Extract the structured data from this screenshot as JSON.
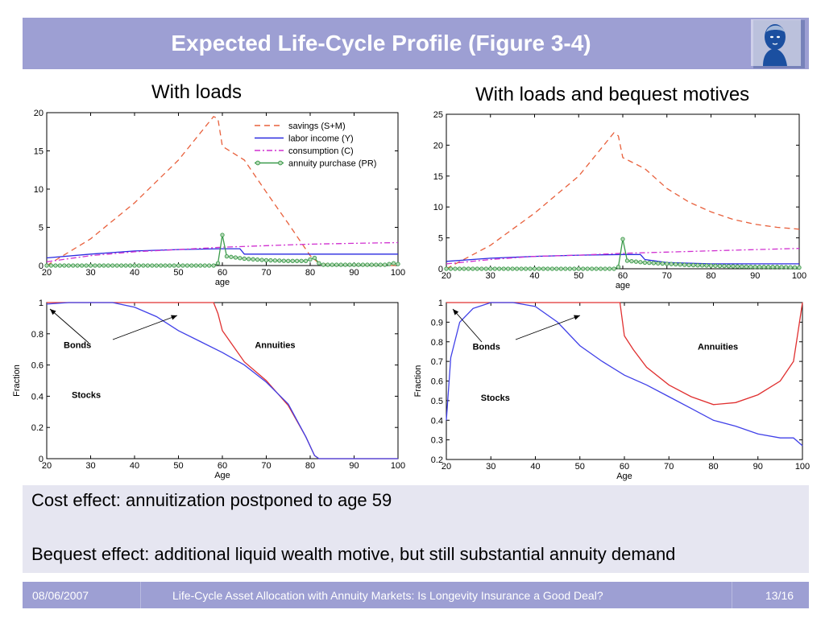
{
  "slide": {
    "title": "Expected Life-Cycle Profile (Figure 3-4)",
    "logo_icon": "goethe-portrait-logo",
    "subhead_left": "With loads",
    "subhead_right": "With loads and bequest motives",
    "note_1": "Cost effect: annuitization postponed to age 59",
    "note_2": "Bequest effect: additional liquid wealth motive, but still substantial annuity demand",
    "footer_date": "08/06/2007",
    "footer_title": "Life-Cycle Asset Allocation with Annuity Markets: Is Longevity Insurance a Good Deal?",
    "footer_page": "13/16",
    "colors": {
      "accent": "#9d9fd3",
      "notes_bg": "#e6e6f1",
      "red": "#e8603c",
      "blue": "#2a2ae0",
      "magenta": "#d030d0",
      "green": "#3a9a4a"
    }
  },
  "chart_data": [
    {
      "type": "line",
      "panel": "top-left",
      "xlabel": "age",
      "ylabel": "",
      "xlim": [
        20,
        100
      ],
      "ylim": [
        0,
        20
      ],
      "xticks": [
        20,
        30,
        40,
        50,
        60,
        70,
        80,
        90,
        100
      ],
      "yticks": [
        0,
        5,
        10,
        15,
        20
      ],
      "legend": "top-right",
      "series": [
        {
          "name": "savings (S+M)",
          "style": "dashed",
          "color": "#e8603c",
          "points": [
            [
              20,
              0
            ],
            [
              30,
              3.5
            ],
            [
              40,
              8.2
            ],
            [
              50,
              13.8
            ],
            [
              58,
              19.5
            ],
            [
              59,
              19.2
            ],
            [
              60,
              15.6
            ],
            [
              65,
              13.8
            ],
            [
              70,
              9.6
            ],
            [
              75,
              5.5
            ],
            [
              80,
              1.3
            ],
            [
              82,
              0.3
            ],
            [
              85,
              0.1
            ],
            [
              100,
              0
            ]
          ]
        },
        {
          "name": "labor income (Y)",
          "style": "solid",
          "color": "#2a2ae0",
          "points": [
            [
              20,
              1.0
            ],
            [
              30,
              1.5
            ],
            [
              40,
              1.9
            ],
            [
              50,
              2.1
            ],
            [
              60,
              2.2
            ],
            [
              64,
              2.2
            ],
            [
              65,
              1.5
            ],
            [
              100,
              1.5
            ]
          ]
        },
        {
          "name": "consumption (C)",
          "style": "dashdot",
          "color": "#d030d0",
          "points": [
            [
              20,
              0.5
            ],
            [
              30,
              1.3
            ],
            [
              40,
              1.8
            ],
            [
              50,
              2.1
            ],
            [
              60,
              2.4
            ],
            [
              70,
              2.6
            ],
            [
              80,
              2.8
            ],
            [
              90,
              2.9
            ],
            [
              100,
              3.0
            ]
          ]
        },
        {
          "name": "annuity purchase (PR)",
          "style": "marker",
          "color": "#3a9a4a",
          "points": [
            [
              20,
              0
            ],
            [
              58,
              0
            ],
            [
              59,
              0.3
            ],
            [
              60,
              4.0
            ],
            [
              61,
              1.2
            ],
            [
              65,
              0.9
            ],
            [
              70,
              0.7
            ],
            [
              75,
              0.6
            ],
            [
              79,
              0.6
            ],
            [
              80,
              0.8
            ],
            [
              81,
              1.0
            ],
            [
              82,
              0.3
            ],
            [
              83,
              0.1
            ],
            [
              97,
              0.1
            ],
            [
              99,
              0.3
            ],
            [
              100,
              0.2
            ]
          ]
        }
      ]
    },
    {
      "type": "line",
      "panel": "top-right",
      "xlabel": "age",
      "ylabel": "",
      "xlim": [
        20,
        100
      ],
      "ylim": [
        0,
        25
      ],
      "xticks": [
        20,
        30,
        40,
        50,
        60,
        70,
        80,
        90,
        100
      ],
      "yticks": [
        0,
        5,
        10,
        15,
        20,
        25
      ],
      "series": [
        {
          "name": "savings (S+M)",
          "style": "dashed",
          "color": "#e8603c",
          "points": [
            [
              20,
              0
            ],
            [
              30,
              3.8
            ],
            [
              40,
              9.0
            ],
            [
              50,
              15.0
            ],
            [
              58,
              22.0
            ],
            [
              59,
              21.5
            ],
            [
              60,
              18.0
            ],
            [
              65,
              16.2
            ],
            [
              70,
              13.0
            ],
            [
              75,
              10.8
            ],
            [
              80,
              9.2
            ],
            [
              85,
              8.0
            ],
            [
              90,
              7.2
            ],
            [
              95,
              6.7
            ],
            [
              100,
              6.4
            ]
          ]
        },
        {
          "name": "labor income (Y)",
          "style": "solid",
          "color": "#2a2ae0",
          "points": [
            [
              20,
              1.2
            ],
            [
              30,
              1.7
            ],
            [
              40,
              2.0
            ],
            [
              50,
              2.2
            ],
            [
              60,
              2.3
            ],
            [
              64,
              2.3
            ],
            [
              65,
              1.5
            ],
            [
              70,
              1.0
            ],
            [
              80,
              0.8
            ],
            [
              100,
              0.8
            ]
          ]
        },
        {
          "name": "consumption (C)",
          "style": "dashdot",
          "color": "#d030d0",
          "points": [
            [
              20,
              0.8
            ],
            [
              30,
              1.5
            ],
            [
              40,
              2.0
            ],
            [
              50,
              2.2
            ],
            [
              60,
              2.5
            ],
            [
              70,
              2.7
            ],
            [
              80,
              2.9
            ],
            [
              90,
              3.1
            ],
            [
              100,
              3.3
            ]
          ]
        },
        {
          "name": "annuity purchase (PR)",
          "style": "marker",
          "color": "#3a9a4a",
          "points": [
            [
              20,
              0
            ],
            [
              58,
              0
            ],
            [
              59,
              0.3
            ],
            [
              60,
              4.8
            ],
            [
              61,
              1.3
            ],
            [
              65,
              1.0
            ],
            [
              70,
              0.8
            ],
            [
              75,
              0.6
            ],
            [
              80,
              0.5
            ],
            [
              85,
              0.4
            ],
            [
              90,
              0.3
            ],
            [
              95,
              0.3
            ],
            [
              100,
              0.2
            ]
          ]
        }
      ]
    },
    {
      "type": "line",
      "panel": "bottom-left",
      "xlabel": "Age",
      "ylabel": "Fraction",
      "xlim": [
        20,
        100
      ],
      "ylim": [
        0,
        1
      ],
      "xticks": [
        20,
        30,
        40,
        50,
        60,
        70,
        80,
        90,
        100
      ],
      "yticks": [
        0,
        0.2,
        0.4,
        0.6,
        0.8,
        1
      ],
      "annotations": [
        {
          "text": "Bonds",
          "x": 27,
          "y": 0.71
        },
        {
          "text": "Annuities",
          "x": 72,
          "y": 0.71
        },
        {
          "text": "Stocks",
          "x": 29,
          "y": 0.39
        }
      ],
      "series": [
        {
          "name": "",
          "style": "solid",
          "color": "#e03030",
          "points": [
            [
              20,
              1
            ],
            [
              58,
              1
            ],
            [
              59,
              0.93
            ],
            [
              60,
              0.82
            ],
            [
              62,
              0.74
            ],
            [
              65,
              0.62
            ],
            [
              70,
              0.5
            ],
            [
              75,
              0.34
            ],
            [
              79,
              0.14
            ],
            [
              81,
              0.02
            ],
            [
              82,
              0
            ],
            [
              100,
              0
            ]
          ]
        },
        {
          "name": "",
          "style": "solid",
          "color": "#4040e8",
          "points": [
            [
              20,
              0.99
            ],
            [
              25,
              1
            ],
            [
              35,
              1
            ],
            [
              40,
              0.97
            ],
            [
              45,
              0.91
            ],
            [
              50,
              0.82
            ],
            [
              55,
              0.75
            ],
            [
              60,
              0.68
            ],
            [
              65,
              0.6
            ],
            [
              70,
              0.49
            ],
            [
              75,
              0.35
            ],
            [
              79,
              0.14
            ],
            [
              81,
              0.02
            ],
            [
              82,
              0
            ],
            [
              100,
              0
            ]
          ]
        }
      ]
    },
    {
      "type": "line",
      "panel": "bottom-right",
      "xlabel": "Age",
      "ylabel": "Fraction",
      "xlim": [
        20,
        100
      ],
      "ylim": [
        0.2,
        1
      ],
      "xticks": [
        20,
        30,
        40,
        50,
        60,
        70,
        80,
        90,
        100
      ],
      "yticks": [
        0.2,
        0.3,
        0.4,
        0.5,
        0.6,
        0.7,
        0.8,
        0.9,
        1
      ],
      "annotations": [
        {
          "text": "Bonds",
          "x": 29,
          "y": 0.76
        },
        {
          "text": "Annuities",
          "x": 81,
          "y": 0.76
        },
        {
          "text": "Stocks",
          "x": 31,
          "y": 0.5
        }
      ],
      "series": [
        {
          "name": "",
          "style": "solid",
          "color": "#e03030",
          "points": [
            [
              20,
              1
            ],
            [
              59,
              1
            ],
            [
              60,
              0.83
            ],
            [
              62,
              0.76
            ],
            [
              65,
              0.67
            ],
            [
              70,
              0.58
            ],
            [
              75,
              0.52
            ],
            [
              80,
              0.48
            ],
            [
              85,
              0.49
            ],
            [
              90,
              0.53
            ],
            [
              95,
              0.6
            ],
            [
              98,
              0.7
            ],
            [
              99,
              0.85
            ],
            [
              100,
              1
            ]
          ]
        },
        {
          "name": "",
          "style": "solid",
          "color": "#4040e8",
          "points": [
            [
              20,
              0.4
            ],
            [
              21,
              0.72
            ],
            [
              23,
              0.9
            ],
            [
              26,
              0.97
            ],
            [
              30,
              1
            ],
            [
              35,
              1
            ],
            [
              40,
              0.98
            ],
            [
              45,
              0.9
            ],
            [
              50,
              0.78
            ],
            [
              55,
              0.7
            ],
            [
              60,
              0.63
            ],
            [
              65,
              0.58
            ],
            [
              70,
              0.52
            ],
            [
              75,
              0.46
            ],
            [
              80,
              0.4
            ],
            [
              85,
              0.37
            ],
            [
              90,
              0.33
            ],
            [
              95,
              0.31
            ],
            [
              98,
              0.31
            ],
            [
              100,
              0.27
            ]
          ]
        }
      ]
    }
  ]
}
